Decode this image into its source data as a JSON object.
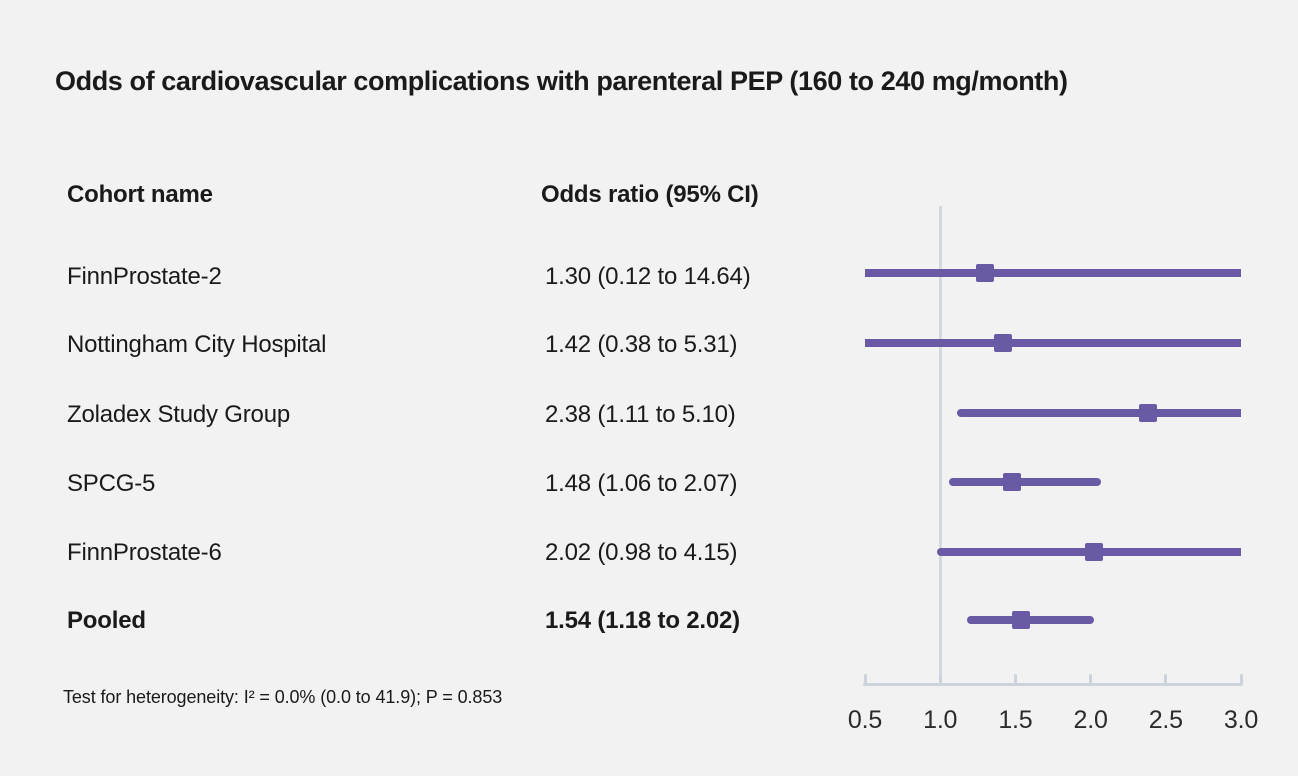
{
  "chart_data": {
    "type": "forest",
    "title": "Odds of cardiovascular complications with parenteral PEP (160 to 240 mg/month)",
    "columns": [
      "Cohort name",
      "Odds ratio (95% CI)"
    ],
    "x_ticks": [
      0.5,
      1.0,
      1.5,
      2.0,
      2.5,
      3.0
    ],
    "x_range": [
      0.5,
      3.0
    ],
    "reference_line": 1.0,
    "studies": [
      {
        "name": "FinnProstate-2",
        "or": 1.3,
        "ci_low": 0.12,
        "ci_high": 14.64,
        "label": "1.30 (0.12 to 14.64)",
        "bold": false
      },
      {
        "name": "Nottingham City Hospital",
        "or": 1.42,
        "ci_low": 0.38,
        "ci_high": 5.31,
        "label": "1.42 (0.38 to 5.31)",
        "bold": false
      },
      {
        "name": "Zoladex Study Group",
        "or": 2.38,
        "ci_low": 1.11,
        "ci_high": 5.1,
        "label": "2.38 (1.11 to 5.10)",
        "bold": false
      },
      {
        "name": "SPCG-5",
        "or": 1.48,
        "ci_low": 1.06,
        "ci_high": 2.07,
        "label": "1.48 (1.06 to 2.07)",
        "bold": false
      },
      {
        "name": "FinnProstate-6",
        "or": 2.02,
        "ci_low": 0.98,
        "ci_high": 4.15,
        "label": "2.02 (0.98 to 4.15)",
        "bold": false
      },
      {
        "name": "Pooled",
        "or": 1.54,
        "ci_low": 1.18,
        "ci_high": 2.02,
        "label": "1.54 (1.18 to 2.02)",
        "bold": true
      }
    ],
    "footnote": "Test for heterogeneity: I² = 0.0% (0.0 to 41.9); P = 0.853",
    "colors": {
      "marker": "#6a59a4",
      "axis": "#cdd3dc",
      "reference_line": "#d3d8e1",
      "background": "#f2f2f2",
      "text": "#1a1a1a"
    }
  }
}
